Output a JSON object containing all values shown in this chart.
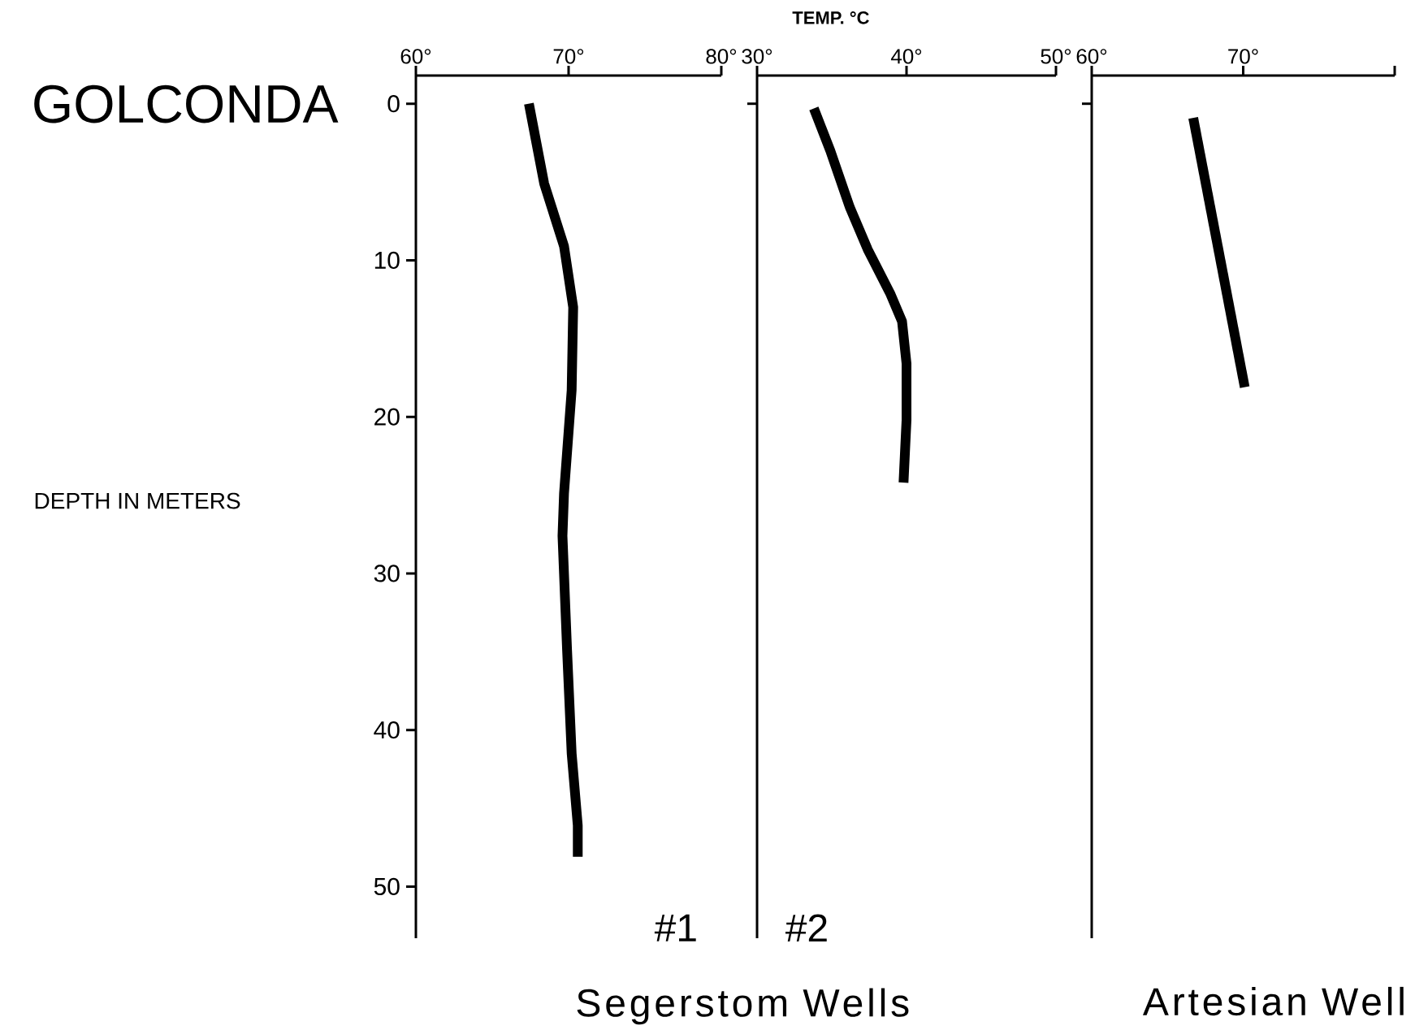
{
  "chart_data": [
    {
      "type": "line",
      "title": "GOLCONDA",
      "ylabel": "DEPTH IN METERS",
      "xlim": [
        60,
        80
      ],
      "ylim": [
        53.3,
        -1.8
      ],
      "xticks": [
        {
          "value": 60,
          "label": "60°"
        },
        {
          "value": 70,
          "label": "70°"
        },
        {
          "value": 80,
          "label": "80°"
        }
      ],
      "yticks": [
        0,
        10,
        20,
        30,
        40,
        50
      ],
      "annotations": [
        "#1",
        "Segerstom Wells"
      ],
      "series": [
        {
          "color": "#000000",
          "x": [
            67.4,
            68.4,
            69.7,
            70.3,
            70.2,
            69.7,
            69.6,
            69.9,
            70.2,
            70.6,
            70.6
          ],
          "values": [
            0,
            5.1,
            9.1,
            13.0,
            18.3,
            24.9,
            27.6,
            34.9,
            41.5,
            46.1,
            48.1
          ]
        }
      ]
    },
    {
      "type": "line",
      "xlabel": "TEMP. °C",
      "xlim": [
        30,
        50
      ],
      "ylim": [
        53.3,
        -1.8
      ],
      "tick_labels": "x",
      "xticks": [
        {
          "value": 30,
          "label": "30°"
        },
        {
          "value": 40,
          "label": "40°"
        },
        {
          "value": 50,
          "label": "50°"
        }
      ],
      "yticks": [
        {
          "value": 0,
          "label": null
        }
      ],
      "annotations": [
        "#2"
      ],
      "series": [
        {
          "color": "#000000",
          "x": [
            33.8,
            34.9,
            36.2,
            37.4,
            38.9,
            39.7,
            40.0,
            40.0,
            39.8
          ],
          "values": [
            0.3,
            3.0,
            6.6,
            9.3,
            12.1,
            13.9,
            16.6,
            20.2,
            24.2
          ]
        }
      ]
    },
    {
      "type": "line",
      "xlim": [
        60,
        80
      ],
      "ylim": [
        53.3,
        -1.8
      ],
      "tick_labels": "x",
      "xticks": [
        {
          "value": 60,
          "label": "60°"
        },
        {
          "value": 70,
          "label": "70°"
        },
        {
          "value": 80,
          "label": null
        }
      ],
      "yticks": [
        {
          "value": 0,
          "label": null
        }
      ],
      "annotations": [
        "Artesian Well"
      ],
      "series": [
        {
          "color": "#000000",
          "x": [
            66.7,
            70.1
          ],
          "values": [
            0.9,
            18.1
          ]
        }
      ]
    }
  ]
}
